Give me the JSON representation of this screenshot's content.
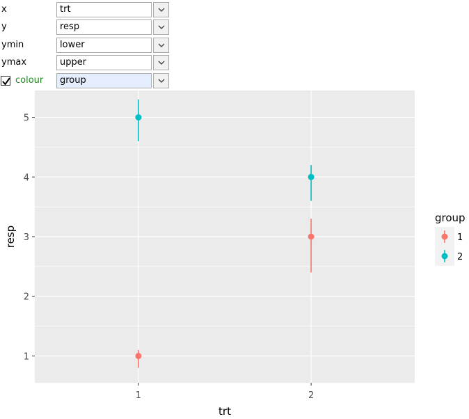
{
  "mapping": {
    "rows": [
      {
        "label": "x",
        "value": "trt"
      },
      {
        "label": "y",
        "value": "resp"
      },
      {
        "label": "ymin",
        "value": "lower"
      },
      {
        "label": "ymax",
        "value": "upper"
      },
      {
        "label": "colour",
        "value": "group",
        "checked": true
      }
    ]
  },
  "colors": {
    "panel_bg": "#ebebeb",
    "grid": "#ffffff",
    "group_1": "#F8766D",
    "group_2": "#00BFC4"
  },
  "chart_data": {
    "type": "scatter",
    "geom": "pointrange",
    "xlabel": "trt",
    "ylabel": "resp",
    "categories": [
      "1",
      "2"
    ],
    "ylim": [
      0.55,
      5.45
    ],
    "yticks": [
      1,
      2,
      3,
      4,
      5
    ],
    "grid": true,
    "legend": {
      "title": "group",
      "placement": "right",
      "entries": [
        "1",
        "2"
      ]
    },
    "series": [
      {
        "name": "1",
        "color": "#F8766D",
        "points": [
          {
            "x": "1",
            "y": 1,
            "ymin": 0.8,
            "ymax": 1.1
          },
          {
            "x": "2",
            "y": 3,
            "ymin": 2.4,
            "ymax": 3.3
          }
        ]
      },
      {
        "name": "2",
        "color": "#00BFC4",
        "points": [
          {
            "x": "1",
            "y": 5,
            "ymin": 4.6,
            "ymax": 5.3
          },
          {
            "x": "2",
            "y": 4,
            "ymin": 3.6,
            "ymax": 4.2
          }
        ]
      }
    ]
  }
}
